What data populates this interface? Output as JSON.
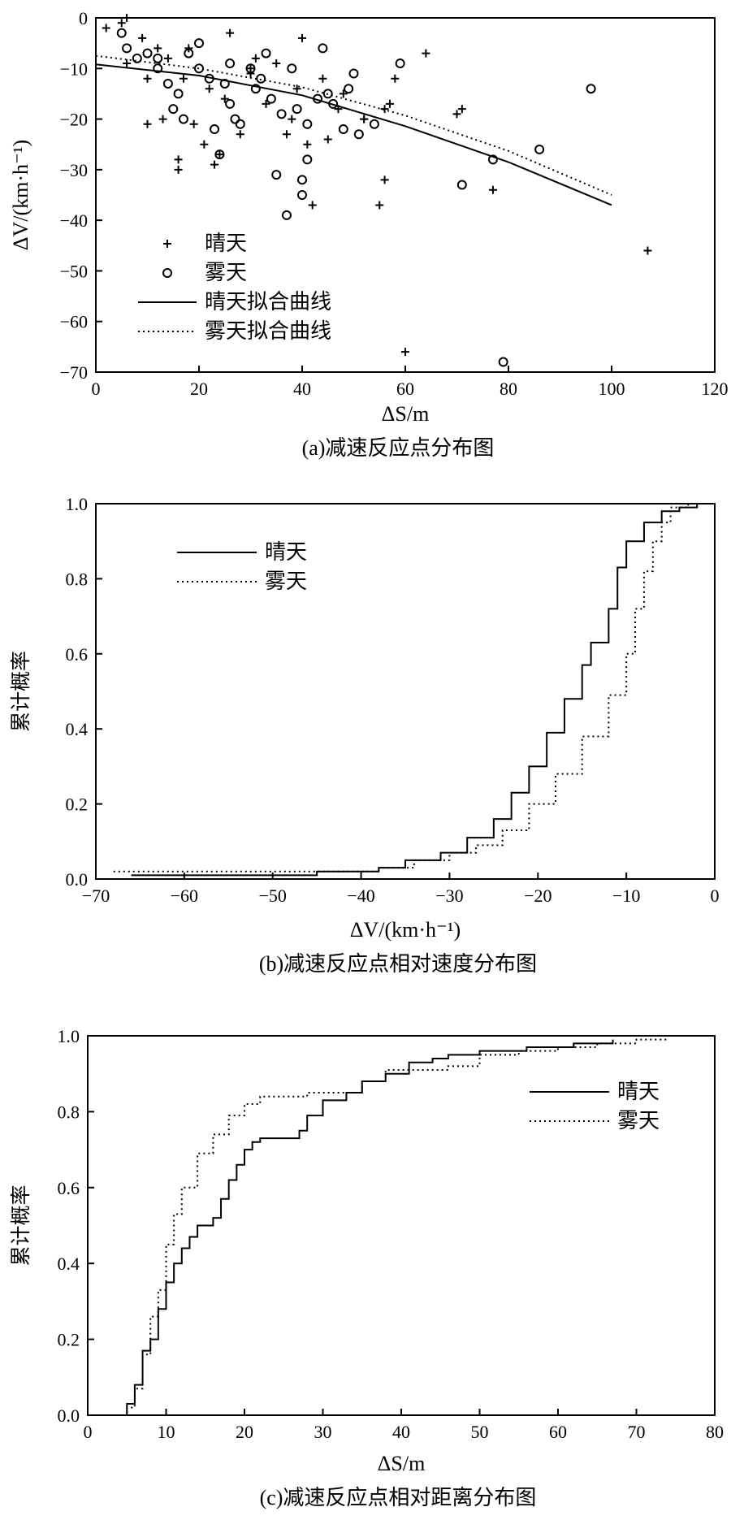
{
  "chart_data": [
    {
      "type": "scatter",
      "caption": "(a)减速反应点分布图",
      "xlabel": "ΔS/m",
      "ylabel": "ΔV/(km·h⁻¹)",
      "xlim": [
        0,
        120
      ],
      "ylim": [
        -70,
        0
      ],
      "xticks": [
        "0",
        "20",
        "40",
        "60",
        "80",
        "100",
        "120"
      ],
      "yticks": [
        "0",
        "−10",
        "−20",
        "−30",
        "−40",
        "−50",
        "−60",
        "−70"
      ],
      "legend": [
        "晴天",
        "雾天",
        "晴天拟合曲线",
        "雾天拟合曲线"
      ],
      "series": [
        {
          "name": "晴天",
          "marker": "plus",
          "points": [
            [
              2,
              -2
            ],
            [
              5,
              -1
            ],
            [
              6,
              0
            ],
            [
              9,
              -4
            ],
            [
              10,
              -21
            ],
            [
              13,
              -20
            ],
            [
              16,
              -28
            ],
            [
              16,
              -30
            ],
            [
              19,
              -21
            ],
            [
              21,
              -25
            ],
            [
              23,
              -29
            ],
            [
              24,
              -27
            ],
            [
              26,
              -3
            ],
            [
              28,
              -23
            ],
            [
              30,
              -10
            ],
            [
              33,
              -17
            ],
            [
              35,
              -9
            ],
            [
              37,
              -23
            ],
            [
              39,
              -14
            ],
            [
              41,
              -25
            ],
            [
              42,
              -37
            ],
            [
              44,
              -12
            ],
            [
              45,
              -24
            ],
            [
              48,
              -15
            ],
            [
              52,
              -20
            ],
            [
              55,
              -37
            ],
            [
              56,
              -32
            ],
            [
              57,
              -17
            ],
            [
              58,
              -12
            ],
            [
              60,
              -66
            ],
            [
              64,
              -7
            ],
            [
              70,
              -19
            ],
            [
              71,
              -18
            ],
            [
              77,
              -34
            ],
            [
              107,
              -46
            ],
            [
              14,
              -8
            ],
            [
              18,
              -6
            ],
            [
              22,
              -14
            ],
            [
              30,
              -11
            ],
            [
              38,
              -20
            ],
            [
              47,
              -18
            ],
            [
              6,
              -9
            ],
            [
              12,
              -6
            ],
            [
              17,
              -12
            ],
            [
              25,
              -16
            ],
            [
              31,
              -8
            ],
            [
              40,
              -4
            ],
            [
              52,
              -20
            ],
            [
              56,
              -18
            ],
            [
              10,
              -12
            ]
          ]
        },
        {
          "name": "雾天",
          "marker": "circle",
          "points": [
            [
              5,
              -3
            ],
            [
              6,
              -6
            ],
            [
              8,
              -8
            ],
            [
              10,
              -7
            ],
            [
              12,
              -10
            ],
            [
              14,
              -13
            ],
            [
              15,
              -18
            ],
            [
              16,
              -15
            ],
            [
              17,
              -20
            ],
            [
              18,
              -7
            ],
            [
              20,
              -5
            ],
            [
              22,
              -12
            ],
            [
              23,
              -22
            ],
            [
              24,
              -27
            ],
            [
              25,
              -13
            ],
            [
              26,
              -17
            ],
            [
              27,
              -20
            ],
            [
              28,
              -21
            ],
            [
              30,
              -10
            ],
            [
              32,
              -12
            ],
            [
              33,
              -7
            ],
            [
              34,
              -16
            ],
            [
              35,
              -31
            ],
            [
              37,
              -39
            ],
            [
              38,
              -10
            ],
            [
              39,
              -18
            ],
            [
              40,
              -32
            ],
            [
              40,
              -35
            ],
            [
              41,
              -28
            ],
            [
              41,
              -21
            ],
            [
              43,
              -16
            ],
            [
              44,
              -6
            ],
            [
              46,
              -17
            ],
            [
              48,
              -22
            ],
            [
              49,
              -14
            ],
            [
              50,
              -11
            ],
            [
              51,
              -23
            ],
            [
              54,
              -21
            ],
            [
              59,
              -9
            ],
            [
              71,
              -33
            ],
            [
              77,
              -28
            ],
            [
              79,
              -68
            ],
            [
              86,
              -26
            ],
            [
              96,
              -14
            ],
            [
              12,
              -8
            ],
            [
              20,
              -10
            ],
            [
              26,
              -9
            ],
            [
              31,
              -14
            ],
            [
              36,
              -19
            ],
            [
              45,
              -15
            ]
          ]
        }
      ],
      "fits": [
        {
          "name": "晴天拟合曲线",
          "style": "solid",
          "points": [
            [
              0,
              -9.2
            ],
            [
              20,
              -11.4
            ],
            [
              40,
              -15.3
            ],
            [
              60,
              -21.4
            ],
            [
              80,
              -28.5
            ],
            [
              100,
              -37
            ]
          ]
        },
        {
          "name": "雾天拟合曲线",
          "style": "dotted",
          "points": [
            [
              0,
              -7.5
            ],
            [
              20,
              -10
            ],
            [
              40,
              -13.7
            ],
            [
              60,
              -19.3
            ],
            [
              80,
              -26.3
            ],
            [
              100,
              -35
            ]
          ]
        }
      ]
    },
    {
      "type": "line",
      "caption": "(b)减速反应点相对速度分布图",
      "xlabel": "ΔV/(km·h⁻¹)",
      "ylabel": "累计概率",
      "xlim": [
        -70,
        0
      ],
      "ylim": [
        0,
        1
      ],
      "xticks": [
        "−70",
        "−60",
        "−50",
        "−40",
        "−30",
        "−20",
        "−10",
        "0"
      ],
      "yticks": [
        "0.0",
        "0.2",
        "0.4",
        "0.6",
        "0.8",
        "1.0"
      ],
      "legend": [
        "晴天",
        "雾天"
      ],
      "series": [
        {
          "name": "晴天",
          "style": "solid",
          "points": [
            [
              -66,
              0.01
            ],
            [
              -52,
              0.01
            ],
            [
              -45,
              0.02
            ],
            [
              -38,
              0.03
            ],
            [
              -35,
              0.05
            ],
            [
              -31,
              0.07
            ],
            [
              -28,
              0.11
            ],
            [
              -25,
              0.16
            ],
            [
              -23,
              0.23
            ],
            [
              -21,
              0.3
            ],
            [
              -19,
              0.39
            ],
            [
              -17,
              0.48
            ],
            [
              -15,
              0.57
            ],
            [
              -14,
              0.63
            ],
            [
              -12,
              0.72
            ],
            [
              -11,
              0.83
            ],
            [
              -10,
              0.9
            ],
            [
              -8,
              0.95
            ],
            [
              -6,
              0.98
            ],
            [
              -4,
              0.99
            ],
            [
              -2,
              1.0
            ],
            [
              0,
              1.0
            ]
          ]
        },
        {
          "name": "雾天",
          "style": "dotted",
          "points": [
            [
              -68,
              0.02
            ],
            [
              -52,
              0.02
            ],
            [
              -45,
              0.02
            ],
            [
              -38,
              0.03
            ],
            [
              -34,
              0.05
            ],
            [
              -30,
              0.07
            ],
            [
              -27,
              0.09
            ],
            [
              -24,
              0.13
            ],
            [
              -21,
              0.2
            ],
            [
              -18,
              0.28
            ],
            [
              -15,
              0.38
            ],
            [
              -12,
              0.49
            ],
            [
              -10,
              0.6
            ],
            [
              -9,
              0.72
            ],
            [
              -8,
              0.82
            ],
            [
              -7,
              0.9
            ],
            [
              -6,
              0.95
            ],
            [
              -5,
              0.99
            ],
            [
              -3,
              1.0
            ],
            [
              0,
              1.0
            ]
          ]
        }
      ]
    },
    {
      "type": "line",
      "caption": "(c)减速反应点相对距离分布图",
      "xlabel": "ΔS/m",
      "ylabel": "累计概率",
      "xlim": [
        0,
        80
      ],
      "ylim": [
        0,
        1
      ],
      "xticks": [
        "0",
        "10",
        "20",
        "30",
        "40",
        "50",
        "60",
        "70",
        "80"
      ],
      "yticks": [
        "0.0",
        "0.2",
        "0.4",
        "0.6",
        "0.8",
        "1.0"
      ],
      "legend": [
        "晴天",
        "雾天"
      ],
      "series": [
        {
          "name": "晴天",
          "style": "solid",
          "points": [
            [
              4.5,
              0.0
            ],
            [
              5,
              0.03
            ],
            [
              6,
              0.08
            ],
            [
              7,
              0.17
            ],
            [
              8,
              0.2
            ],
            [
              9,
              0.28
            ],
            [
              10,
              0.35
            ],
            [
              11,
              0.4
            ],
            [
              12,
              0.44
            ],
            [
              13,
              0.47
            ],
            [
              14,
              0.5
            ],
            [
              16,
              0.52
            ],
            [
              17,
              0.57
            ],
            [
              18,
              0.62
            ],
            [
              19,
              0.66
            ],
            [
              20,
              0.7
            ],
            [
              21,
              0.72
            ],
            [
              22,
              0.73
            ],
            [
              25,
              0.73
            ],
            [
              27,
              0.75
            ],
            [
              28,
              0.79
            ],
            [
              30,
              0.83
            ],
            [
              33,
              0.85
            ],
            [
              35,
              0.88
            ],
            [
              38,
              0.9
            ],
            [
              41,
              0.93
            ],
            [
              44,
              0.94
            ],
            [
              46,
              0.95
            ],
            [
              50,
              0.96
            ],
            [
              56,
              0.97
            ],
            [
              62,
              0.98
            ],
            [
              67,
              0.99
            ]
          ]
        },
        {
          "name": "雾天",
          "style": "dotted",
          "points": [
            [
              4,
              0.0
            ],
            [
              5,
              0.02
            ],
            [
              6,
              0.07
            ],
            [
              7,
              0.16
            ],
            [
              8,
              0.26
            ],
            [
              9,
              0.33
            ],
            [
              10,
              0.45
            ],
            [
              11,
              0.53
            ],
            [
              12,
              0.6
            ],
            [
              14,
              0.69
            ],
            [
              16,
              0.74
            ],
            [
              18,
              0.79
            ],
            [
              20,
              0.82
            ],
            [
              22,
              0.84
            ],
            [
              24,
              0.84
            ],
            [
              28,
              0.85
            ],
            [
              32,
              0.85
            ],
            [
              35,
              0.88
            ],
            [
              38,
              0.91
            ],
            [
              42,
              0.91
            ],
            [
              46,
              0.92
            ],
            [
              50,
              0.95
            ],
            [
              55,
              0.96
            ],
            [
              60,
              0.97
            ],
            [
              65,
              0.98
            ],
            [
              70,
              0.99
            ],
            [
              74,
              0.99
            ]
          ]
        }
      ]
    }
  ]
}
